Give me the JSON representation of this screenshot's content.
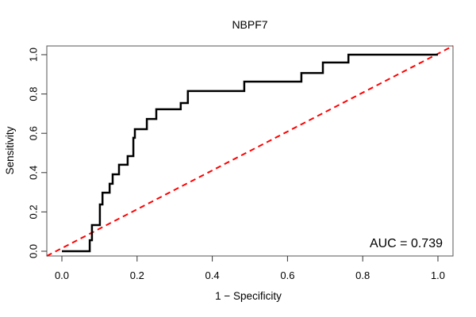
{
  "title": "NBPF7",
  "axes": {
    "x": {
      "label": "1 − Specificity",
      "ticks": [
        "0.0",
        "0.2",
        "0.4",
        "0.6",
        "0.8",
        "1.0"
      ],
      "tick_values": [
        0,
        0.2,
        0.4,
        0.6,
        0.8,
        1.0
      ],
      "range": [
        0,
        1
      ]
    },
    "y": {
      "label": "Sensitivity",
      "ticks": [
        "0.0",
        "0.2",
        "0.4",
        "0.6",
        "0.8",
        "1.0"
      ],
      "tick_values": [
        0,
        0.2,
        0.4,
        0.6,
        0.8,
        1.0
      ],
      "range": [
        0,
        1
      ]
    }
  },
  "annotation": {
    "auc_label": "AUC = 0.739",
    "auc_value": 0.739
  },
  "colors": {
    "roc_curve": "#000000",
    "diagonal": "#ff0000",
    "background": "#ffffff",
    "box": "#555555"
  },
  "chart_data": {
    "type": "line",
    "subtype": "roc-step-curve",
    "title": "NBPF7",
    "xlabel": "1 − Specificity",
    "ylabel": "Sensitivity",
    "xlim": [
      -0.04,
      1.04
    ],
    "ylim": [
      -0.04,
      1.04
    ],
    "grid": false,
    "legend_position": "none",
    "auc": 0.739,
    "series": [
      {
        "name": "ROC curve",
        "style": "solid black step, lwd 2",
        "points": [
          [
            0.0,
            0.0
          ],
          [
            0.074,
            0.0
          ],
          [
            0.074,
            0.056
          ],
          [
            0.08,
            0.056
          ],
          [
            0.08,
            0.133
          ],
          [
            0.101,
            0.133
          ],
          [
            0.101,
            0.238
          ],
          [
            0.108,
            0.238
          ],
          [
            0.108,
            0.298
          ],
          [
            0.127,
            0.298
          ],
          [
            0.127,
            0.343
          ],
          [
            0.135,
            0.343
          ],
          [
            0.135,
            0.391
          ],
          [
            0.152,
            0.391
          ],
          [
            0.152,
            0.44
          ],
          [
            0.175,
            0.44
          ],
          [
            0.175,
            0.484
          ],
          [
            0.19,
            0.484
          ],
          [
            0.19,
            0.577
          ],
          [
            0.194,
            0.577
          ],
          [
            0.194,
            0.621
          ],
          [
            0.226,
            0.621
          ],
          [
            0.226,
            0.673
          ],
          [
            0.251,
            0.673
          ],
          [
            0.251,
            0.722
          ],
          [
            0.316,
            0.722
          ],
          [
            0.316,
            0.754
          ],
          [
            0.335,
            0.754
          ],
          [
            0.335,
            0.815
          ],
          [
            0.485,
            0.815
          ],
          [
            0.485,
            0.863
          ],
          [
            0.637,
            0.863
          ],
          [
            0.637,
            0.907
          ],
          [
            0.694,
            0.907
          ],
          [
            0.694,
            0.96
          ],
          [
            0.762,
            0.96
          ],
          [
            0.762,
            1.0
          ],
          [
            1.0,
            1.0
          ]
        ]
      },
      {
        "name": "chance diagonal",
        "style": "dashed red, lwd 2",
        "points": [
          [
            0,
            0
          ],
          [
            1,
            1
          ]
        ]
      }
    ]
  }
}
